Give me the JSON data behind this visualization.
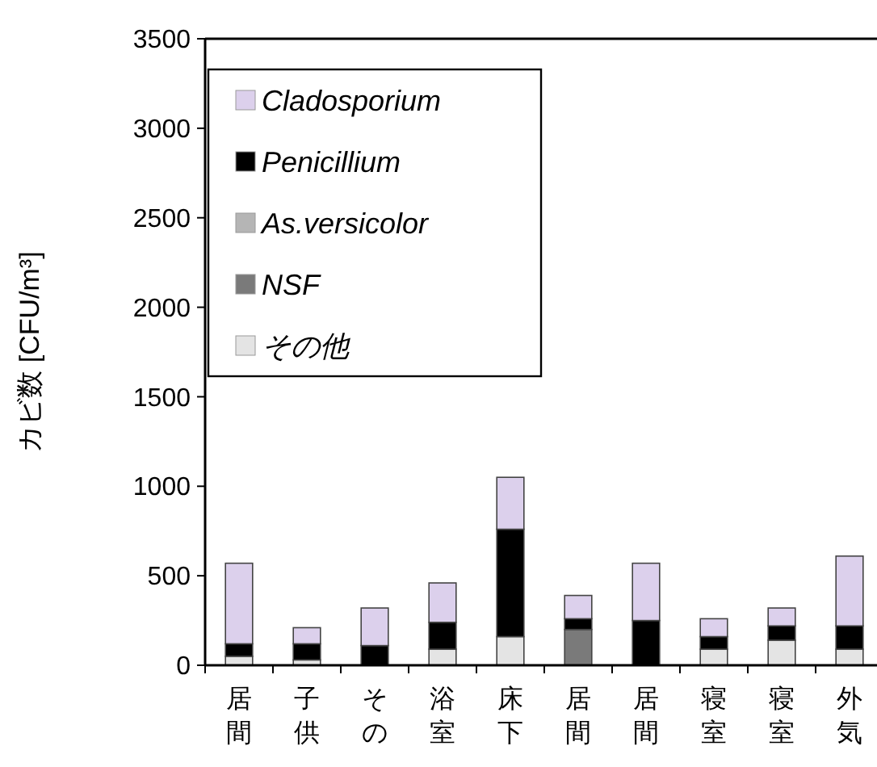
{
  "chart_data": {
    "type": "bar",
    "stacked": true,
    "ylabel": "カビ数 [CFU/m³]",
    "categories": [
      "居間",
      "子供",
      "その",
      "浴室",
      "床下",
      "居間",
      "居間",
      "寝室",
      "寝室",
      "外気"
    ],
    "series": [
      {
        "name": "その他",
        "color": "#e4e4e4",
        "values": [
          50,
          30,
          0,
          90,
          160,
          0,
          0,
          90,
          140,
          90
        ]
      },
      {
        "name": "NSF",
        "color": "#7a7a7a",
        "values": [
          0,
          0,
          0,
          0,
          0,
          200,
          0,
          0,
          0,
          0
        ]
      },
      {
        "name": "As.versicolor",
        "color": "#b5b5b5",
        "values": [
          0,
          0,
          0,
          0,
          0,
          0,
          0,
          0,
          0,
          0
        ]
      },
      {
        "name": "Penicillium",
        "color": "#000000",
        "values": [
          70,
          90,
          110,
          150,
          600,
          60,
          250,
          70,
          80,
          130
        ]
      },
      {
        "name": "Cladosporium",
        "color": "#dcd0ec",
        "values": [
          450,
          90,
          210,
          220,
          290,
          130,
          320,
          100,
          100,
          390
        ]
      }
    ],
    "ylim": [
      0,
      3500
    ],
    "yticks": [
      0,
      500,
      1000,
      1500,
      2000,
      2500,
      3000,
      3500
    ],
    "grid": false,
    "legend": "top left"
  }
}
